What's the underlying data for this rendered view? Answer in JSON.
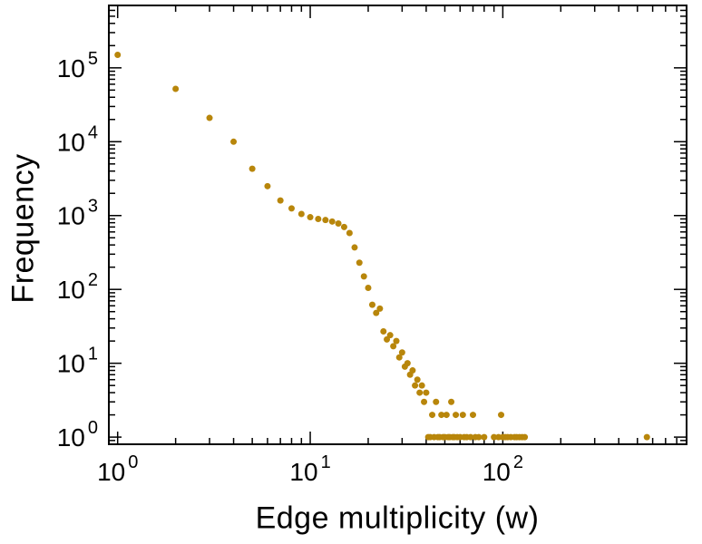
{
  "figure": {
    "background": "#ffffff",
    "ink_color": "#000000"
  },
  "chart_data": {
    "type": "scatter",
    "title": "",
    "xlabel": "Edge multiplicity (w)",
    "ylabel": "Frequency",
    "xscale": "log",
    "yscale": "log",
    "xlim": [
      0.9,
      900
    ],
    "ylim": [
      0.8,
      700000
    ],
    "grid": false,
    "legend": "none",
    "marker": {
      "shape": "circle",
      "color": "#B8860B",
      "radius": 3.5
    },
    "x_ticks": [
      {
        "value": 1,
        "base": "10",
        "exp": "0"
      },
      {
        "value": 10,
        "base": "10",
        "exp": "1"
      },
      {
        "value": 100,
        "base": "10",
        "exp": "2"
      }
    ],
    "y_ticks": [
      {
        "value": 1,
        "base": "10",
        "exp": "0"
      },
      {
        "value": 10,
        "base": "10",
        "exp": "1"
      },
      {
        "value": 100,
        "base": "10",
        "exp": "2"
      },
      {
        "value": 1000,
        "base": "10",
        "exp": "3"
      },
      {
        "value": 10000,
        "base": "10",
        "exp": "4"
      },
      {
        "value": 100000,
        "base": "10",
        "exp": "5"
      }
    ],
    "points": [
      [
        1,
        150000
      ],
      [
        2,
        52000
      ],
      [
        3,
        21000
      ],
      [
        4,
        10000
      ],
      [
        5,
        4300
      ],
      [
        6,
        2500
      ],
      [
        7,
        1600
      ],
      [
        8,
        1250
      ],
      [
        9,
        1050
      ],
      [
        10,
        950
      ],
      [
        11,
        900
      ],
      [
        12,
        870
      ],
      [
        13,
        830
      ],
      [
        14,
        780
      ],
      [
        15,
        700
      ],
      [
        16,
        580
      ],
      [
        17,
        370
      ],
      [
        18,
        230
      ],
      [
        19,
        150
      ],
      [
        20,
        105
      ],
      [
        21,
        62
      ],
      [
        22,
        48
      ],
      [
        23,
        55
      ],
      [
        24,
        27
      ],
      [
        25,
        21
      ],
      [
        26,
        24
      ],
      [
        27,
        17
      ],
      [
        28,
        20
      ],
      [
        29,
        12
      ],
      [
        30,
        14
      ],
      [
        31,
        9
      ],
      [
        32,
        10
      ],
      [
        33,
        7
      ],
      [
        34,
        8
      ],
      [
        35,
        5
      ],
      [
        36,
        6
      ],
      [
        37,
        4
      ],
      [
        38,
        5
      ],
      [
        39,
        3
      ],
      [
        40,
        4
      ],
      [
        41,
        1
      ],
      [
        42,
        1
      ],
      [
        43,
        2
      ],
      [
        44,
        1
      ],
      [
        45,
        3
      ],
      [
        46,
        1
      ],
      [
        47,
        1
      ],
      [
        48,
        2
      ],
      [
        49,
        1
      ],
      [
        50,
        1
      ],
      [
        51,
        2
      ],
      [
        52,
        1
      ],
      [
        53,
        1
      ],
      [
        54,
        3
      ],
      [
        55,
        1
      ],
      [
        56,
        1
      ],
      [
        57,
        2
      ],
      [
        58,
        1
      ],
      [
        60,
        1
      ],
      [
        62,
        2
      ],
      [
        63,
        1
      ],
      [
        65,
        1
      ],
      [
        68,
        1
      ],
      [
        70,
        2
      ],
      [
        72,
        1
      ],
      [
        75,
        1
      ],
      [
        80,
        1
      ],
      [
        90,
        1
      ],
      [
        95,
        1
      ],
      [
        98,
        2
      ],
      [
        100,
        1
      ],
      [
        103,
        1
      ],
      [
        106,
        1
      ],
      [
        110,
        1
      ],
      [
        115,
        1
      ],
      [
        118,
        1
      ],
      [
        122,
        1
      ],
      [
        126,
        1
      ],
      [
        130,
        1
      ],
      [
        560,
        1
      ]
    ]
  }
}
